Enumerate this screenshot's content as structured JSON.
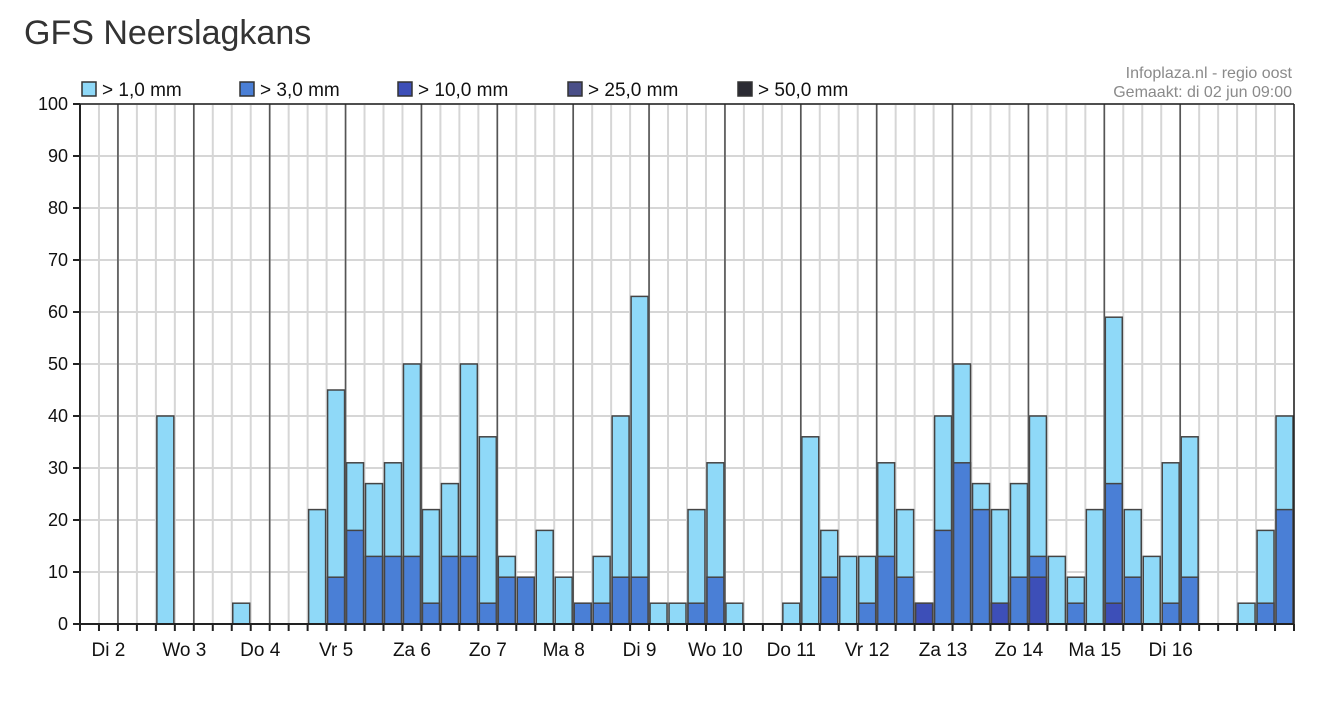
{
  "page": {
    "title": "GFS Neerslagkans"
  },
  "credits": {
    "source": "Infoplaza.nl - regio oost",
    "made": "Gemaakt: di 02 jun 09:00"
  },
  "colors": {
    "c1": "#8fd9f8",
    "c3": "#4a7fd6",
    "c10": "#3d4fb8",
    "c25": "#4a4f88",
    "c50": "#2b2b33",
    "grid": "#d6d6d6",
    "dayline": "#555555"
  },
  "chart_data": {
    "type": "bar",
    "stacked": false,
    "overlay": true,
    "title": "GFS Neerslagkans",
    "ylim": [
      0,
      100
    ],
    "yticks": [
      0,
      10,
      20,
      30,
      40,
      50,
      60,
      70,
      80,
      90,
      100
    ],
    "grid": true,
    "legend_position": "top",
    "days": [
      "Di 2",
      "Wo 3",
      "Do 4",
      "Vr 5",
      "Za 6",
      "Zo 7",
      "Ma 8",
      "Di 9",
      "Wo 10",
      "Do 11",
      "Vr 12",
      "Za 13",
      "Zo 14",
      "Ma 15",
      "Di 16"
    ],
    "series": [
      {
        "name": "> 1,0 mm",
        "values": [
          0,
          0,
          0,
          0,
          40,
          0,
          0,
          0,
          4,
          0,
          0,
          0,
          22,
          45,
          31,
          27,
          31,
          50,
          22,
          27,
          50,
          36,
          13,
          9,
          18,
          9,
          4,
          13,
          40,
          63,
          4,
          4,
          22,
          31,
          4,
          0,
          0,
          4,
          36,
          18,
          13,
          13,
          31,
          22,
          4,
          40,
          50,
          27,
          22,
          27,
          40,
          13,
          9,
          22,
          59,
          22,
          13,
          31,
          36,
          0,
          0,
          4,
          18,
          40
        ]
      },
      {
        "name": "> 3,0 mm",
        "values": [
          0,
          0,
          0,
          0,
          0,
          0,
          0,
          0,
          0,
          0,
          0,
          0,
          0,
          9,
          18,
          13,
          13,
          13,
          4,
          13,
          13,
          4,
          9,
          9,
          0,
          0,
          4,
          4,
          9,
          9,
          0,
          0,
          4,
          9,
          0,
          0,
          0,
          0,
          0,
          9,
          0,
          4,
          13,
          9,
          4,
          18,
          31,
          22,
          4,
          9,
          13,
          0,
          4,
          0,
          27,
          9,
          0,
          4,
          9,
          0,
          0,
          0,
          4,
          22
        ]
      },
      {
        "name": "> 10,0 mm",
        "values": [
          0,
          0,
          0,
          0,
          0,
          0,
          0,
          0,
          0,
          0,
          0,
          0,
          0,
          0,
          0,
          0,
          0,
          0,
          0,
          0,
          0,
          0,
          0,
          0,
          0,
          0,
          0,
          0,
          0,
          0,
          0,
          0,
          0,
          0,
          0,
          0,
          0,
          0,
          0,
          0,
          0,
          0,
          0,
          0,
          4,
          0,
          0,
          0,
          4,
          0,
          9,
          0,
          0,
          0,
          4,
          0,
          0,
          0,
          0,
          0,
          0,
          0,
          0,
          0
        ]
      },
      {
        "name": "> 25,0 mm",
        "values": [
          0,
          0,
          0,
          0,
          0,
          0,
          0,
          0,
          0,
          0,
          0,
          0,
          0,
          0,
          0,
          0,
          0,
          0,
          0,
          0,
          0,
          0,
          0,
          0,
          0,
          0,
          0,
          0,
          0,
          0,
          0,
          0,
          0,
          0,
          0,
          0,
          0,
          0,
          0,
          0,
          0,
          0,
          0,
          0,
          0,
          0,
          0,
          0,
          0,
          0,
          0,
          0,
          0,
          0,
          0,
          0,
          0,
          0,
          0,
          0,
          0,
          0,
          0,
          0
        ]
      },
      {
        "name": "> 50,0 mm",
        "values": [
          0,
          0,
          0,
          0,
          0,
          0,
          0,
          0,
          0,
          0,
          0,
          0,
          0,
          0,
          0,
          0,
          0,
          0,
          0,
          0,
          0,
          0,
          0,
          0,
          0,
          0,
          0,
          0,
          0,
          0,
          0,
          0,
          0,
          0,
          0,
          0,
          0,
          0,
          0,
          0,
          0,
          0,
          0,
          0,
          0,
          0,
          0,
          0,
          0,
          0,
          0,
          0,
          0,
          0,
          0,
          0,
          0,
          0,
          0,
          0,
          0,
          0,
          0,
          0
        ]
      }
    ]
  }
}
